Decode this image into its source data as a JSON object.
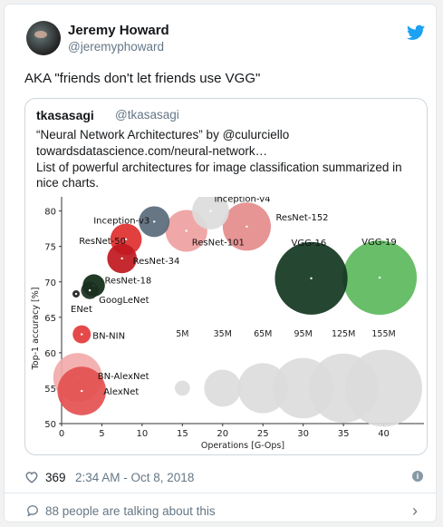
{
  "tweet": {
    "author_name": "Jeremy Howard",
    "author_handle": "@jeremyphoward",
    "text": "AKA \"friends don't let friends use VGG\"",
    "likes": "369",
    "timestamp": "2:34 AM - Oct 8, 2018",
    "talking": "88 people are talking about this",
    "icons": [
      "avatar",
      "twitter-bird-icon",
      "heart-icon",
      "info-icon",
      "speech-bubble-icon",
      "chevron-right-icon"
    ]
  },
  "quote": {
    "author_name": "tkasasagi",
    "author_handle": "@tkasasagi",
    "line1": "“Neural Network Architectures” by @culurciello",
    "line2": "towardsdatascience.com/neural-network…",
    "line3": "List of powerful architectures for image classification summarized in nice charts."
  },
  "chart_data": {
    "type": "scatter",
    "xlabel": "Operations [G-Ops]",
    "ylabel": "Top-1 accuracy [%]",
    "xlim": [
      0,
      45
    ],
    "ylim": [
      50,
      82
    ],
    "xticks": [
      0,
      5,
      10,
      15,
      20,
      25,
      30,
      35,
      40
    ],
    "yticks": [
      50,
      55,
      60,
      65,
      70,
      75,
      80
    ],
    "grid": false,
    "points": [
      {
        "label": "Inception-v4",
        "x": 18.5,
        "y": 80.0,
        "params": 35,
        "color": "#dcdcdc"
      },
      {
        "label": "Inception-v3",
        "x": 11.5,
        "y": 78.5,
        "params": 24,
        "color": "#5a6a7a"
      },
      {
        "label": "ResNet-152",
        "x": 23.0,
        "y": 77.8,
        "params": 60,
        "color": "#e48b8b"
      },
      {
        "label": "ResNet-101",
        "x": 15.5,
        "y": 77.2,
        "params": 45,
        "color": "#ef9f9f"
      },
      {
        "label": "ResNet-50",
        "x": 8.0,
        "y": 76.0,
        "params": 25,
        "color": "#e02f2f"
      },
      {
        "label": "ResNet-34",
        "x": 7.5,
        "y": 73.3,
        "params": 22,
        "color": "#c0181e"
      },
      {
        "label": "ResNet-18",
        "x": 4.0,
        "y": 69.5,
        "params": 12,
        "color": "#0f2a15"
      },
      {
        "label": "GoogLeNet",
        "x": 3.5,
        "y": 68.8,
        "params": 7,
        "color": "#1a2f20"
      },
      {
        "label": "ENet",
        "x": 1.8,
        "y": 68.3,
        "params": 0.4,
        "color": "#222"
      },
      {
        "label": "VGG-16",
        "x": 31.0,
        "y": 70.5,
        "params": 138,
        "color": "#123620"
      },
      {
        "label": "VGG-19",
        "x": 39.5,
        "y": 70.6,
        "params": 144,
        "color": "#5cb85c"
      },
      {
        "label": "BN-NIN",
        "x": 2.5,
        "y": 62.6,
        "params": 7.6,
        "color": "#e43a3a"
      },
      {
        "label": "BN-AlexNet",
        "x": 2.0,
        "y": 56.5,
        "params": 62,
        "color": "#f2aaaa"
      },
      {
        "label": "AlexNet",
        "x": 2.5,
        "y": 54.6,
        "params": 61,
        "color": "#e45050"
      }
    ],
    "size_legend": {
      "labels": [
        "5M",
        "35M",
        "65M",
        "95M",
        "125M",
        "155M"
      ],
      "x": [
        15,
        20,
        25,
        30,
        35,
        40
      ],
      "y": 55
    }
  }
}
